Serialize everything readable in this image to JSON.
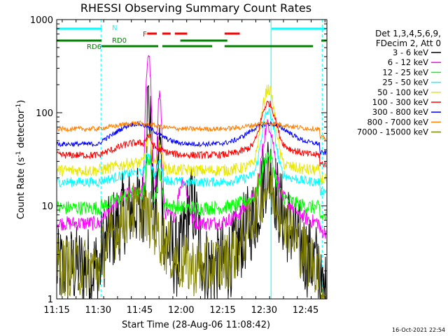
{
  "chart_data": {
    "type": "line",
    "title": "RHESSI Observing Summary Count Rates",
    "xlabel": "Start Time (28-Aug-06 11:08:42)",
    "ylabel_main": "Count Rate (s",
    "ylabel_sup1": "-1",
    "ylabel_mid": " detector",
    "ylabel_sup2": "-1",
    "ylabel_end": ")",
    "yscale": "log",
    "ylim": [
      1,
      1000
    ],
    "xlim_minutes": [
      11.3,
      109.0
    ],
    "x_tick_labels": [
      "11:15",
      "11:30",
      "11:45",
      "12:00",
      "12:15",
      "12:30",
      "12:45"
    ],
    "x_tick_minutes": [
      11.3,
      26.3,
      41.3,
      56.3,
      71.3,
      86.3,
      101.3
    ],
    "y_tick_labels": [
      "1",
      "10",
      "100",
      "1000"
    ],
    "y_tick_values": [
      1,
      10,
      100,
      1000
    ],
    "legend_header": [
      "Det 1,3,4,5,6,9,",
      "FDecim 2, Att 0"
    ],
    "series": [
      {
        "name": "3 - 6 keV",
        "color": "#000000",
        "base": 2.2,
        "bell": 4.5,
        "noise": 0.35,
        "flare": [
          [
            44.5,
            120,
            0.9
          ],
          [
            48.5,
            40,
            0.8
          ],
          [
            60,
            8,
            2.5
          ],
          [
            87.8,
            15,
            2.5
          ]
        ]
      },
      {
        "name": "6 - 12 keV",
        "color": "#ff00ff",
        "base": 6.5,
        "bell": 2.2,
        "noise": 0.06,
        "flare": [
          [
            44.5,
            420,
            0.9
          ],
          [
            48.5,
            150,
            0.8
          ],
          [
            57,
            12,
            2.0
          ],
          [
            87.8,
            60,
            2.3
          ]
        ]
      },
      {
        "name": "12 - 25 keV",
        "color": "#00ff00",
        "base": 9.5,
        "bell": 1.4,
        "noise": 0.06,
        "flare": [
          [
            44.5,
            20,
            1.1
          ],
          [
            48.5,
            12,
            0.9
          ],
          [
            87.8,
            22,
            2.5
          ]
        ]
      },
      {
        "name": "25 - 50 keV",
        "color": "#00ffff",
        "base": 18,
        "bell": 1.25,
        "noise": 0.04,
        "flare": [
          [
            44.5,
            15,
            1.2
          ],
          [
            48.5,
            10,
            1.0
          ],
          [
            87.8,
            80,
            2.6
          ]
        ]
      },
      {
        "name": "50 - 100 keV",
        "color": "#e8e800",
        "base": 24,
        "bell": 1.2,
        "noise": 0.05,
        "flare": [
          [
            44.5,
            25,
            1.2
          ],
          [
            48.5,
            20,
            1.0
          ],
          [
            87.8,
            150,
            2.6
          ]
        ]
      },
      {
        "name": "100 - 300 keV",
        "color": "#ff0000",
        "base": 35,
        "bell": 1.35,
        "noise": 0.03,
        "flare": [
          [
            44.5,
            12,
            1.3
          ],
          [
            87.8,
            80,
            3.0
          ]
        ]
      },
      {
        "name": "300 - 800 keV",
        "color": "#0000ff",
        "base": 46,
        "bell": 1.65,
        "noise": 0.02,
        "flare": []
      },
      {
        "name": "800 - 7000 keV",
        "color": "#ff8000",
        "base": 67,
        "bell": 1.15,
        "noise": 0.02,
        "flare": []
      },
      {
        "name": "7000 - 15000 keV",
        "color": "#808000",
        "base": 2.2,
        "bell": 4.0,
        "noise": 0.25,
        "flare": [
          [
            87.8,
            7,
            4.0
          ]
        ]
      }
    ],
    "night_mark": "N",
    "saa_mark": "F",
    "rd_labels": [
      "RD0",
      "RD6"
    ],
    "bars": {
      "cyan": [
        [
          11.3,
          27.5
        ],
        [
          89.0,
          108.5
        ]
      ],
      "red": [
        [
          44.0,
          47.5
        ],
        [
          49.5,
          52.5
        ],
        [
          54.0,
          58.5
        ],
        [
          72.0,
          77.5
        ]
      ],
      "green_upper": [
        [
          11.3,
          27.5
        ],
        [
          56.0,
          73.0
        ],
        [
          107.0,
          108.8
        ]
      ],
      "green_lower": [
        [
          27.5,
          48.0
        ],
        [
          49.5,
          67.5
        ],
        [
          72.0,
          104.0
        ]
      ]
    },
    "vlines_cyan": [
      27.3,
      88.8,
      107.3
    ],
    "footer_date": "16-Oct-2021 22:54"
  }
}
